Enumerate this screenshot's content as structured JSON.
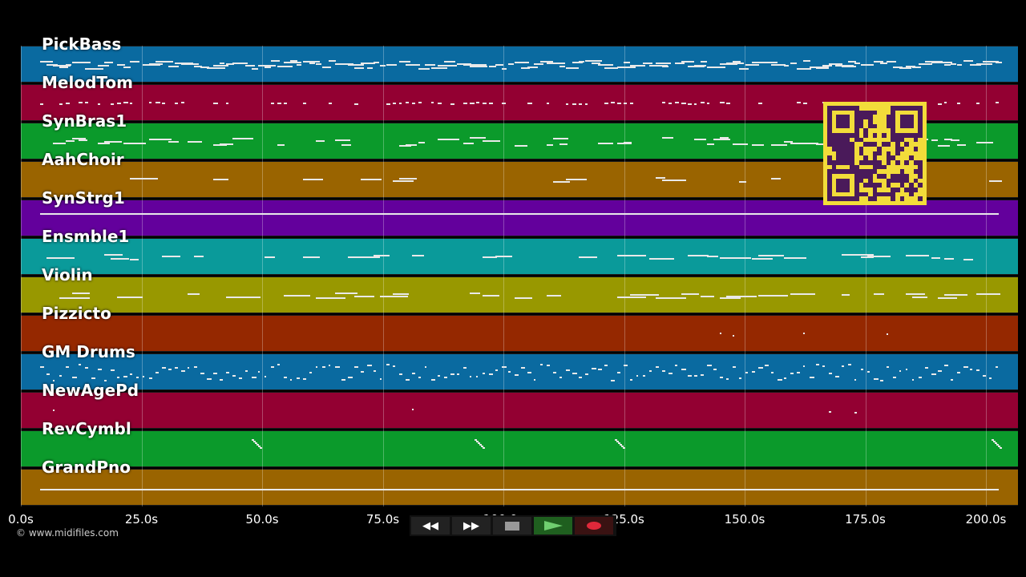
{
  "tracks": [
    {
      "label": "PickBass",
      "color": "#0a6aa0"
    },
    {
      "label": "MelodTom",
      "color": "#930032"
    },
    {
      "label": "SynBras1",
      "color": "#0b9a2b"
    },
    {
      "label": "AahChoir",
      "color": "#9a6400"
    },
    {
      "label": "SynStrg1",
      "color": "#63009c"
    },
    {
      "label": "Ensmble1",
      "color": "#0a9a9a"
    },
    {
      "label": "Violin",
      "color": "#989800"
    },
    {
      "label": "Pizzicto",
      "color": "#952800"
    },
    {
      "label": "GM Drums",
      "color": "#0a6aa0"
    },
    {
      "label": "NewAgePd",
      "color": "#930032"
    },
    {
      "label": "RevCymbl",
      "color": "#0b9a2b"
    },
    {
      "label": "GrandPno",
      "color": "#9a6400"
    }
  ],
  "timeline": {
    "ticks": [
      "0.0s",
      "25.0s",
      "50.0s",
      "75.0s",
      "100.0s",
      "125.0s",
      "150.0s",
      "175.0s",
      "200.0s"
    ],
    "max_seconds": 205.7
  },
  "transport": {
    "rewind_label": "◀◀",
    "forward_label": "▶▶",
    "stop_icon": "stop-icon",
    "play_icon": "play-icon",
    "record_icon": "record-icon"
  },
  "copyright": "© www.midifiles.com",
  "qr": {
    "color": "#f2dc3a",
    "dark": "#4a1a5a"
  }
}
